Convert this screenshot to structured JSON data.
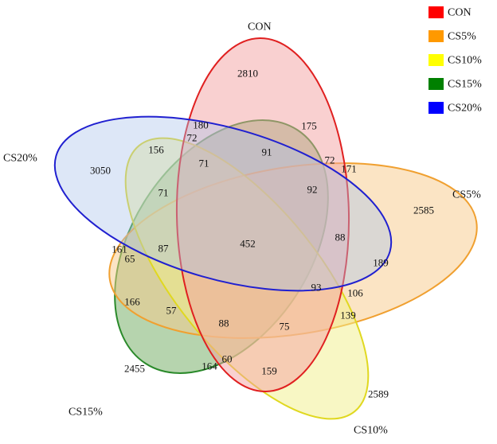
{
  "legend": [
    {
      "label": "CON",
      "color": "#ff0000"
    },
    {
      "label": "CS5%",
      "color": "#ff9900"
    },
    {
      "label": "CS10%",
      "color": "#ffff00"
    },
    {
      "label": "CS15%",
      "color": "#008000"
    },
    {
      "label": "CS20%",
      "color": "#0000ff"
    }
  ],
  "sets": {
    "con": {
      "label": "CON",
      "fill": "#f4a2a2",
      "stroke": "#e02020"
    },
    "cs5": {
      "label": "CS5%",
      "fill": "#f7c98a",
      "stroke": "#f0a030"
    },
    "cs10": {
      "label": "CS10%",
      "fill": "#f2f08a",
      "stroke": "#e0d820"
    },
    "cs15": {
      "label": "CS15%",
      "fill": "#6eaa5e",
      "stroke": "#2a8a2a"
    },
    "cs20": {
      "label": "CS20%",
      "fill": "#a9c4ec",
      "stroke": "#2020d0"
    }
  },
  "counts": {
    "con_only": "2810",
    "cs5_only": "2585",
    "cs10_only": "2589",
    "cs15_only": "2455",
    "cs20_only": "3050",
    "all": "452",
    "c180": "180",
    "c175": "175",
    "c156": "156",
    "c72a": "72",
    "c72b": "72",
    "c171": "171",
    "c91": "91",
    "c71a": "71",
    "c71b": "71",
    "c92": "92",
    "c88a": "88",
    "c88b": "88",
    "c189": "189",
    "c161": "161",
    "c65": "65",
    "c87": "87",
    "c93": "93",
    "c106": "106",
    "c139": "139",
    "c166": "166",
    "c57": "57",
    "c75": "75",
    "c164": "164",
    "c60": "60",
    "c159": "159"
  }
}
